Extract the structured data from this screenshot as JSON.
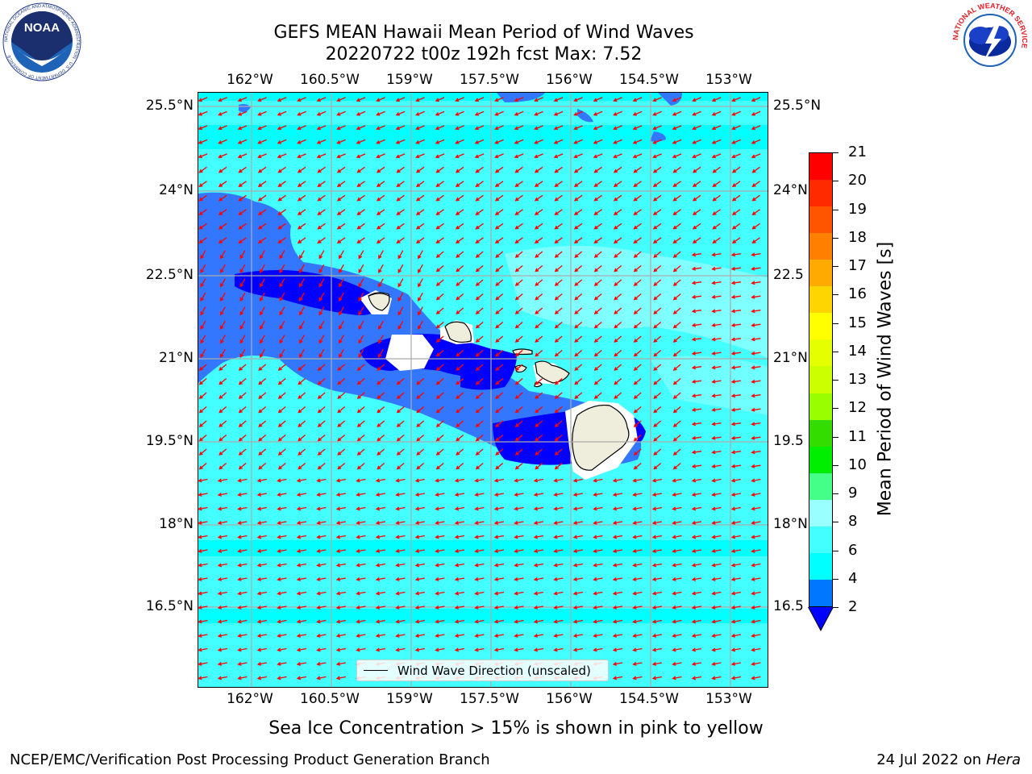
{
  "header": {
    "title_line1": "GEFS MEAN Hawaii Mean Period of Wind Waves",
    "title_line2": "20220722 t00z 192h fcst   Max: 7.52"
  },
  "axes": {
    "lon_labels": [
      "162°W",
      "160.5°W",
      "159°W",
      "157.5°W",
      "156°W",
      "154.5°W",
      "153°W"
    ],
    "lat_labels_left": [
      "25.5°N",
      "24°N",
      "22.5°N",
      "21°N",
      "19.5°N",
      "18°N",
      "16.5°N"
    ],
    "lat_labels_right": [
      "25.5°N",
      "24°N",
      "22.5",
      "21°N",
      "19.5",
      "18°N",
      "16.5"
    ]
  },
  "legend": {
    "label": "Wind Wave Direction (unscaled)"
  },
  "colorbar": {
    "title": "Mean Period of Wind Waves [s]",
    "tick_labels": [
      "21",
      "20",
      "19",
      "18",
      "17",
      "16",
      "15",
      "14",
      "13",
      "12",
      "11",
      "10",
      "9",
      "8",
      "6",
      "4",
      "2"
    ],
    "colors": [
      "#ff0000",
      "#ff2a00",
      "#ff5500",
      "#ff8000",
      "#ffaa00",
      "#ffd500",
      "#ffff00",
      "#e5ff00",
      "#ccff00",
      "#99ff00",
      "#33dd00",
      "#00ee00",
      "#44ff88",
      "#99ffff",
      "#44ffff",
      "#00ffff",
      "#0077ff"
    ],
    "under_color": "#0000ff"
  },
  "subtitle": "Sea Ice Concentration > 15% is shown in pink to yellow",
  "footer": {
    "left": "NCEP/EMC/Verification Post Processing Product Generation Branch",
    "right_prefix": "24 Jul 2022 on ",
    "right_machine": "Hera"
  },
  "logos": {
    "noaa_text": "NOAA",
    "noaa_ring": "NATIONAL OCEANIC AND ATMOSPHERIC ADMINISTRATION · U.S. DEPARTMENT OF COMMERCE",
    "nws_ring": "NATIONAL WEATHER SERVICE"
  },
  "map_colors": {
    "sea_light": "#44ffff",
    "sea_cyan": "#00ffff",
    "pale": "#99ffff",
    "mid_blue": "#3377ff",
    "deep_blue": "#0000ff",
    "land": "#efeddb",
    "arrow": "#ff0000",
    "grid": "#aaaaaa"
  }
}
